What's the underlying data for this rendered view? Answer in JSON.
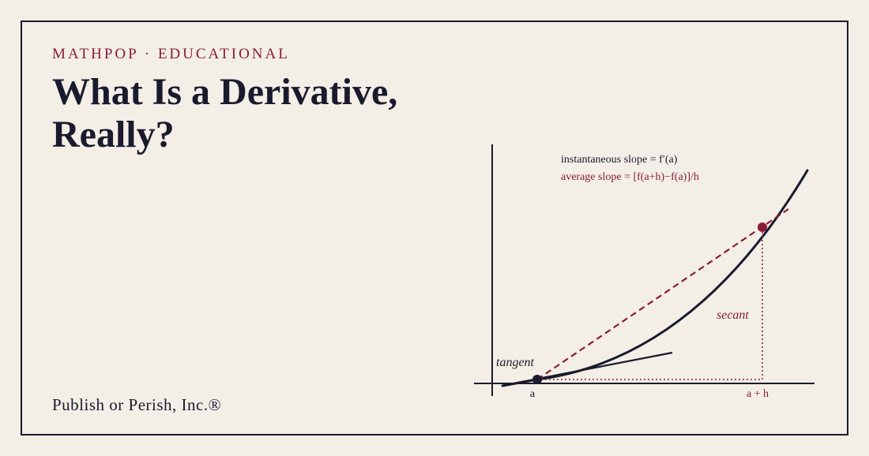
{
  "header": {
    "kicker": "MATHPOP · EDUCATIONAL",
    "title_line1": "What Is a Derivative,",
    "title_line2": "Really?"
  },
  "footer": {
    "publisher": "Publish or Perish, Inc.®"
  },
  "diagram": {
    "formula_instantaneous": "instantaneous slope = f′(a)",
    "formula_average": "average slope = [f(a+h)−f(a)]/h",
    "tangent_label": "tangent",
    "secant_label": "secant",
    "point_a_label": "a",
    "point_ah_label": "a + h"
  },
  "colors": {
    "background": "#f3efe6",
    "ink": "#1a1a2e",
    "accent": "#8b1a3a"
  }
}
